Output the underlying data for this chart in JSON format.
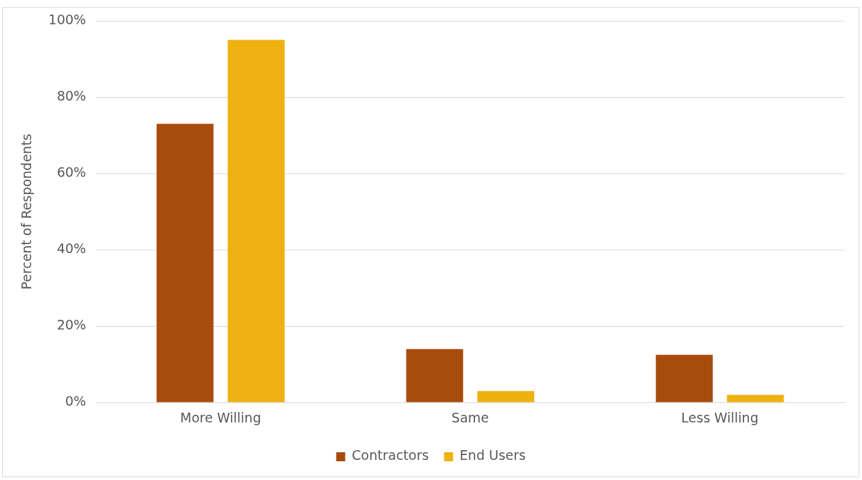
{
  "chart_data": {
    "type": "bar",
    "ylabel": "Percent of Respondents",
    "categories": [
      "More Willing",
      "Same",
      "Less Willing"
    ],
    "series": [
      {
        "name": "Contractors",
        "color": "#a84c0e",
        "values": [
          73,
          14,
          12.5
        ]
      },
      {
        "name": "End Users",
        "color": "#eeb111",
        "values": [
          95,
          3,
          2
        ]
      }
    ],
    "ylim": [
      0,
      100
    ],
    "yticks": [
      {
        "value": 0,
        "label": "0%"
      },
      {
        "value": 20,
        "label": "20%"
      },
      {
        "value": 40,
        "label": "40%"
      },
      {
        "value": 60,
        "label": "60%"
      },
      {
        "value": 80,
        "label": "80%"
      },
      {
        "value": 100,
        "label": "100%"
      }
    ],
    "grid": "y",
    "legend": "bottom"
  }
}
